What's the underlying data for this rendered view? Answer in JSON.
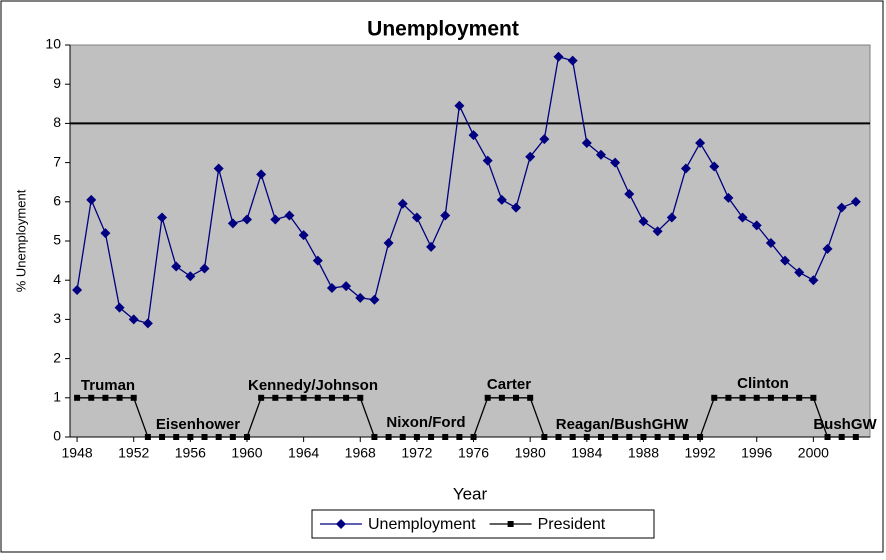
{
  "chart_data": {
    "type": "line",
    "title": "Unemployment",
    "x_label": "Year",
    "y_label": "% Unemployment",
    "x": [
      1948,
      1949,
      1950,
      1951,
      1952,
      1953,
      1954,
      1955,
      1956,
      1957,
      1958,
      1959,
      1960,
      1961,
      1962,
      1963,
      1964,
      1965,
      1966,
      1967,
      1968,
      1969,
      1970,
      1971,
      1972,
      1973,
      1974,
      1975,
      1976,
      1977,
      1978,
      1979,
      1980,
      1981,
      1982,
      1983,
      1984,
      1985,
      1986,
      1987,
      1988,
      1989,
      1990,
      1991,
      1992,
      1993,
      1994,
      1995,
      1996,
      1997,
      1998,
      1999,
      2000,
      2001,
      2002,
      2003
    ],
    "series": [
      {
        "name": "Unemployment",
        "color": "#000080",
        "marker": "diamond",
        "values": [
          3.75,
          6.05,
          5.2,
          3.3,
          3.0,
          2.9,
          5.6,
          4.35,
          4.1,
          4.3,
          6.85,
          5.45,
          5.55,
          6.7,
          5.55,
          5.65,
          5.15,
          4.5,
          3.8,
          3.85,
          3.55,
          3.5,
          4.95,
          5.95,
          5.6,
          4.85,
          5.65,
          8.45,
          7.7,
          7.05,
          6.05,
          5.85,
          7.15,
          7.6,
          9.7,
          9.6,
          7.5,
          7.2,
          7.0,
          6.2,
          5.5,
          5.25,
          5.6,
          6.85,
          7.5,
          6.9,
          6.1,
          5.6,
          5.4,
          4.95,
          4.5,
          4.2,
          4.0,
          4.8,
          5.85,
          6.0
        ]
      },
      {
        "name": "President",
        "color": "#000000",
        "marker": "square",
        "values": [
          1,
          1,
          1,
          1,
          1,
          0,
          0,
          0,
          0,
          0,
          0,
          0,
          0,
          1,
          1,
          1,
          1,
          1,
          1,
          1,
          1,
          0,
          0,
          0,
          0,
          0,
          0,
          0,
          0,
          1,
          1,
          1,
          1,
          0,
          0,
          0,
          0,
          0,
          0,
          0,
          0,
          0,
          0,
          0,
          0,
          1,
          1,
          1,
          1,
          1,
          1,
          1,
          1,
          0,
          0,
          0
        ]
      }
    ],
    "annotations": [
      "Truman",
      "Eisenhower",
      "Kennedy/Johnson",
      "Nixon/Ford",
      "Carter",
      "Reagan/BushGHW",
      "Clinton",
      "BushGW"
    ],
    "xlim": [
      1947.5,
      2004
    ],
    "ylim": [
      0,
      10
    ],
    "xticks": [
      1948,
      1952,
      1956,
      1960,
      1964,
      1968,
      1972,
      1976,
      1980,
      1984,
      1988,
      1992,
      1996,
      2000
    ],
    "yticks": [
      0,
      1,
      2,
      3,
      4,
      5,
      6,
      7,
      8,
      9,
      10
    ],
    "reference_lines": [
      8
    ],
    "plot_background": "#c0c0c0",
    "legend": "bottom"
  }
}
